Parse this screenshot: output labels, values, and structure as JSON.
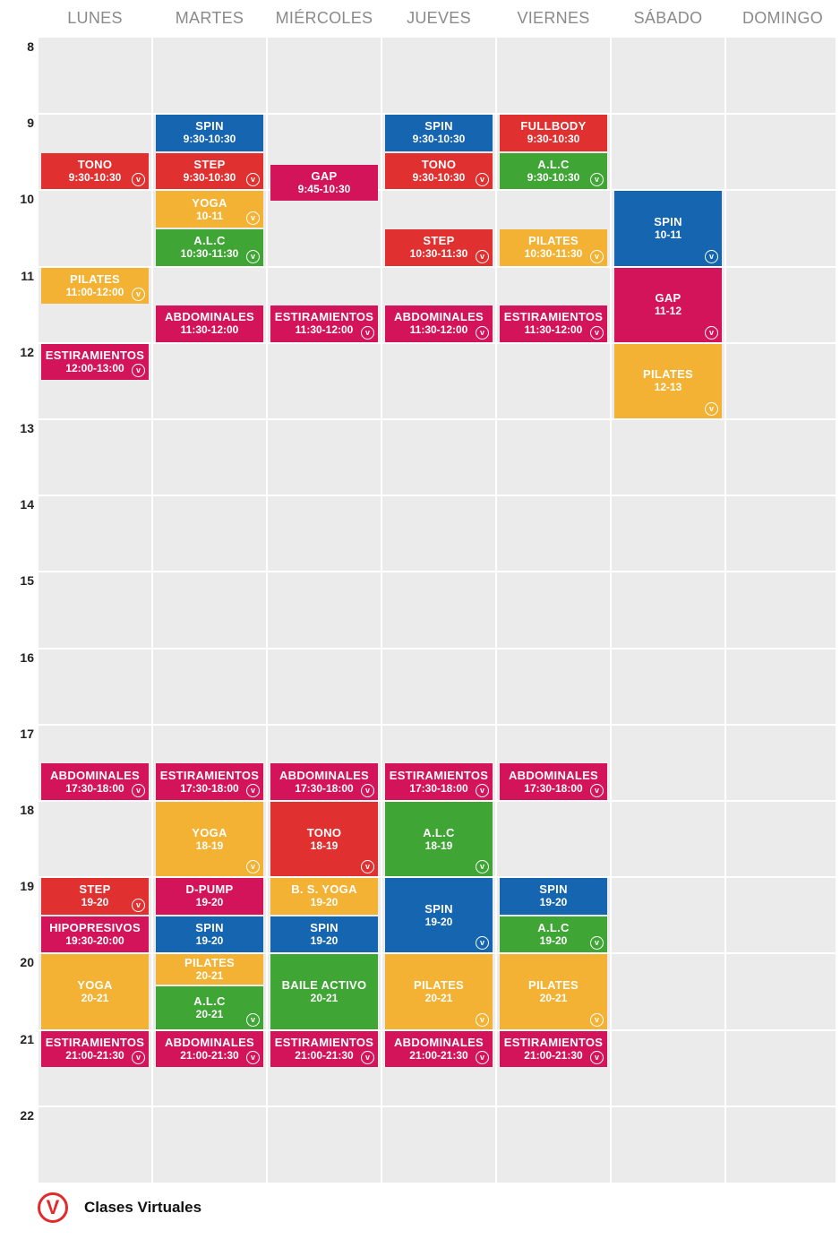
{
  "colors": {
    "spin": "#1565b0",
    "red": "#e03030",
    "magenta": "#d4145a",
    "yellow": "#f3b233",
    "green": "#3fa535",
    "grid": "#ebebeb",
    "legend_icon": "#e22a2a"
  },
  "days": [
    "LUNES",
    "MARTES",
    "MIÉRCOLES",
    "JUEVES",
    "VIERNES",
    "SÁBADO",
    "DOMINGO"
  ],
  "hours": [
    "8",
    "9",
    "10",
    "11",
    "12",
    "13",
    "14",
    "15",
    "16",
    "17",
    "18",
    "19",
    "20",
    "21",
    "22"
  ],
  "events": [
    {
      "day": 0,
      "start": 9.5,
      "end": 10,
      "name": "TONO",
      "time": "9:30-10:30",
      "color": "red",
      "virtual": true
    },
    {
      "day": 0,
      "start": 11,
      "end": 11.5,
      "name": "PILATES",
      "time": "11:00-12:00",
      "color": "yellow",
      "virtual": true
    },
    {
      "day": 0,
      "start": 12,
      "end": 12.5,
      "name": "ESTIRAMIENTOS",
      "time": "12:00-13:00",
      "color": "magenta",
      "virtual": true
    },
    {
      "day": 0,
      "start": 17.5,
      "end": 18,
      "name": "ABDOMINALES",
      "time": "17:30-18:00",
      "color": "magenta",
      "virtual": true
    },
    {
      "day": 0,
      "start": 19,
      "end": 19.5,
      "name": "STEP",
      "time": "19-20",
      "color": "red",
      "virtual": true
    },
    {
      "day": 0,
      "start": 19.5,
      "end": 20,
      "name": "HIPOPRESIVOS",
      "time": "19:30-20:00",
      "color": "magenta",
      "virtual": false
    },
    {
      "day": 0,
      "start": 20,
      "end": 21,
      "name": "YOGA",
      "time": "20-21",
      "color": "yellow",
      "virtual": false
    },
    {
      "day": 0,
      "start": 21,
      "end": 21.5,
      "name": "ESTIRAMIENTOS",
      "time": "21:00-21:30",
      "color": "magenta",
      "virtual": true
    },
    {
      "day": 1,
      "start": 9,
      "end": 9.5,
      "name": "SPIN",
      "time": "9:30-10:30",
      "color": "spin",
      "virtual": false
    },
    {
      "day": 1,
      "start": 9.5,
      "end": 10,
      "name": "STEP",
      "time": "9:30-10:30",
      "color": "red",
      "virtual": true
    },
    {
      "day": 1,
      "start": 10,
      "end": 10.5,
      "name": "YOGA",
      "time": "10-11",
      "color": "yellow",
      "virtual": true
    },
    {
      "day": 1,
      "start": 10.5,
      "end": 11,
      "name": "A.L.C",
      "time": "10:30-11:30",
      "color": "green",
      "virtual": true
    },
    {
      "day": 1,
      "start": 11.5,
      "end": 12,
      "name": "ABDOMINALES",
      "time": "11:30-12:00",
      "color": "magenta",
      "virtual": false
    },
    {
      "day": 1,
      "start": 17.5,
      "end": 18,
      "name": "ESTIRAMIENTOS",
      "time": "17:30-18:00",
      "color": "magenta",
      "virtual": true
    },
    {
      "day": 1,
      "start": 18,
      "end": 19,
      "name": "YOGA",
      "time": "18-19",
      "color": "yellow",
      "virtual": true
    },
    {
      "day": 1,
      "start": 19,
      "end": 19.5,
      "name": "D-PUMP",
      "time": "19-20",
      "color": "magenta",
      "virtual": false
    },
    {
      "day": 1,
      "start": 19.5,
      "end": 20,
      "name": "SPIN",
      "time": "19-20",
      "color": "spin",
      "virtual": false
    },
    {
      "day": 1,
      "start": 20,
      "end": 20.42,
      "name": "PILATES",
      "time": "20-21",
      "color": "yellow",
      "virtual": false
    },
    {
      "day": 1,
      "start": 20.42,
      "end": 21,
      "name": "A.L.C",
      "time": "20-21",
      "color": "green",
      "virtual": true
    },
    {
      "day": 1,
      "start": 21,
      "end": 21.5,
      "name": "ABDOMINALES",
      "time": "21:00-21:30",
      "color": "magenta",
      "virtual": true
    },
    {
      "day": 2,
      "start": 9.65,
      "end": 10.15,
      "name": "GAP",
      "time": "9:45-10:30",
      "color": "magenta",
      "virtual": false
    },
    {
      "day": 2,
      "start": 11.5,
      "end": 12,
      "name": "ESTIRAMIENTOS",
      "time": "11:30-12:00",
      "color": "magenta",
      "virtual": true
    },
    {
      "day": 2,
      "start": 17.5,
      "end": 18,
      "name": "ABDOMINALES",
      "time": "17:30-18:00",
      "color": "magenta",
      "virtual": true
    },
    {
      "day": 2,
      "start": 18,
      "end": 19,
      "name": "TONO",
      "time": "18-19",
      "color": "red",
      "virtual": true
    },
    {
      "day": 2,
      "start": 19,
      "end": 19.5,
      "name": "B. S. YOGA",
      "time": "19-20",
      "color": "yellow",
      "virtual": false
    },
    {
      "day": 2,
      "start": 19.5,
      "end": 20,
      "name": "SPIN",
      "time": "19-20",
      "color": "spin",
      "virtual": false
    },
    {
      "day": 2,
      "start": 20,
      "end": 21,
      "name": "BAILE ACTIVO",
      "time": "20-21",
      "color": "green",
      "virtual": false
    },
    {
      "day": 2,
      "start": 21,
      "end": 21.5,
      "name": "ESTIRAMIENTOS",
      "time": "21:00-21:30",
      "color": "magenta",
      "virtual": true
    },
    {
      "day": 3,
      "start": 9,
      "end": 9.5,
      "name": "SPIN",
      "time": "9:30-10:30",
      "color": "spin",
      "virtual": false
    },
    {
      "day": 3,
      "start": 9.5,
      "end": 10,
      "name": "TONO",
      "time": "9:30-10:30",
      "color": "red",
      "virtual": true
    },
    {
      "day": 3,
      "start": 10.5,
      "end": 11,
      "name": "STEP",
      "time": "10:30-11:30",
      "color": "red",
      "virtual": true
    },
    {
      "day": 3,
      "start": 11.5,
      "end": 12,
      "name": "ABDOMINALES",
      "time": "11:30-12:00",
      "color": "magenta",
      "virtual": true
    },
    {
      "day": 3,
      "start": 17.5,
      "end": 18,
      "name": "ESTIRAMIENTOS",
      "time": "17:30-18:00",
      "color": "magenta",
      "virtual": true
    },
    {
      "day": 3,
      "start": 18,
      "end": 19,
      "name": "A.L.C",
      "time": "18-19",
      "color": "green",
      "virtual": true
    },
    {
      "day": 3,
      "start": 19,
      "end": 20,
      "name": "SPIN",
      "time": "19-20",
      "color": "spin",
      "virtual": true
    },
    {
      "day": 3,
      "start": 20,
      "end": 21,
      "name": "PILATES",
      "time": "20-21",
      "color": "yellow",
      "virtual": true
    },
    {
      "day": 3,
      "start": 21,
      "end": 21.5,
      "name": "ABDOMINALES",
      "time": "21:00-21:30",
      "color": "magenta",
      "virtual": true
    },
    {
      "day": 4,
      "start": 9,
      "end": 9.5,
      "name": "FULLBODY",
      "time": "9:30-10:30",
      "color": "red",
      "virtual": false
    },
    {
      "day": 4,
      "start": 9.5,
      "end": 10,
      "name": "A.L.C",
      "time": "9:30-10:30",
      "color": "green",
      "virtual": true
    },
    {
      "day": 4,
      "start": 10.5,
      "end": 11,
      "name": "PILATES",
      "time": "10:30-11:30",
      "color": "yellow",
      "virtual": true
    },
    {
      "day": 4,
      "start": 11.5,
      "end": 12,
      "name": "ESTIRAMIENTOS",
      "time": "11:30-12:00",
      "color": "magenta",
      "virtual": true
    },
    {
      "day": 4,
      "start": 17.5,
      "end": 18,
      "name": "ABDOMINALES",
      "time": "17:30-18:00",
      "color": "magenta",
      "virtual": true
    },
    {
      "day": 4,
      "start": 19,
      "end": 19.5,
      "name": "SPIN",
      "time": "19-20",
      "color": "spin",
      "virtual": false
    },
    {
      "day": 4,
      "start": 19.5,
      "end": 20,
      "name": "A.L.C",
      "time": "19-20",
      "color": "green",
      "virtual": true
    },
    {
      "day": 4,
      "start": 20,
      "end": 21,
      "name": "PILATES",
      "time": "20-21",
      "color": "yellow",
      "virtual": true
    },
    {
      "day": 4,
      "start": 21,
      "end": 21.5,
      "name": "ESTIRAMIENTOS",
      "time": "21:00-21:30",
      "color": "magenta",
      "virtual": true
    },
    {
      "day": 5,
      "start": 10,
      "end": 11,
      "name": "SPIN",
      "time": "10-11",
      "color": "spin",
      "virtual": true
    },
    {
      "day": 5,
      "start": 11,
      "end": 12,
      "name": "GAP",
      "time": "11-12",
      "color": "magenta",
      "virtual": true
    },
    {
      "day": 5,
      "start": 12,
      "end": 13,
      "name": "PILATES",
      "time": "12-13",
      "color": "yellow",
      "virtual": true
    }
  ],
  "legend": {
    "icon_letter": "V",
    "label": "Clases Virtuales",
    "icon_glyph": "v"
  }
}
